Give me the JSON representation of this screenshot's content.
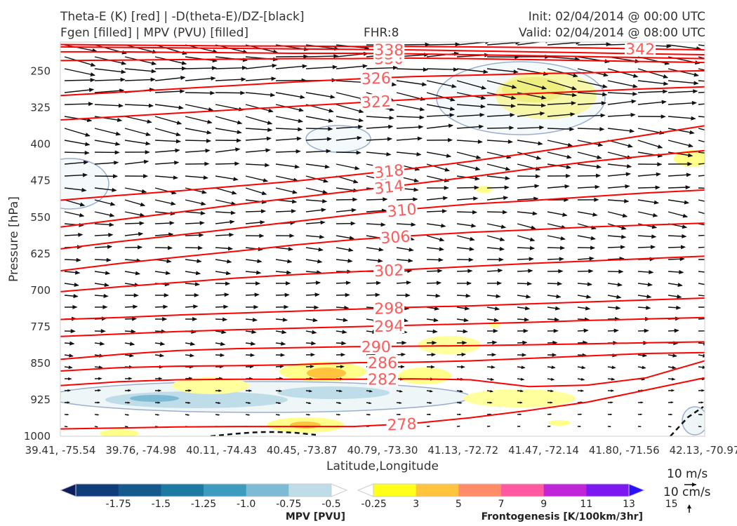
{
  "header": {
    "title_line1": "Theta-E (K) [red] | -D(theta-E)/DZ-[black]",
    "title_line2": "Fgen [filled] | MPV (PVU) [filled]",
    "fhr": "FHR:8",
    "init": "Init: 02/04/2014 @ 00:00 UTC",
    "valid": "Valid: 02/04/2014 @ 08:00 UTC"
  },
  "chart_data": {
    "type": "cross-section",
    "xlabel": "Latitude,Longitude",
    "ylabel": "Pressure [hPa]",
    "x_ticks": [
      "39.41, -75.54",
      "39.76, -74.98",
      "40.11, -74.43",
      "40.45, -73.87",
      "40.79, -73.30",
      "41.13, -72.72",
      "41.47, -72.14",
      "41.80, -71.56",
      "42.13, -70.97"
    ],
    "y_ticks": [
      250,
      325,
      400,
      475,
      550,
      625,
      700,
      775,
      850,
      925,
      1000
    ],
    "ylim": [
      1000,
      190
    ],
    "y_scale": "linear-inverted",
    "theta_e_contours": [
      {
        "label": "278",
        "label_x": 0.53,
        "p": [
          985,
          983,
          981,
          980,
          980,
          980,
          974,
          962,
          947,
          930,
          905,
          880
        ]
      },
      {
        "label": "282",
        "label_x": 0.5,
        "p": [
          896,
          888,
          884,
          883,
          883,
          883,
          882,
          884,
          898,
          895,
          880,
          845
        ]
      },
      {
        "label": "286",
        "label_x": 0.5,
        "p": [
          866,
          859,
          856,
          855,
          853,
          849,
          848,
          845,
          840,
          835,
          830,
          828
        ]
      },
      {
        "label": "290",
        "label_x": 0.49,
        "p": [
          842,
          832,
          824,
          820,
          818,
          816,
          815,
          814,
          812,
          810,
          808,
          806
        ]
      },
      {
        "label": "294",
        "label_x": 0.51,
        "p": [
          795,
          790,
          785,
          781,
          778,
          775,
          772,
          769,
          766,
          762,
          759,
          756
        ]
      },
      {
        "label": "298",
        "label_x": 0.51,
        "p": [
          760,
          756,
          751,
          747,
          743,
          739,
          735,
          732,
          728,
          724,
          720,
          716
        ]
      },
      {
        "label": "302",
        "label_x": 0.51,
        "p": [
          703,
          693,
          684,
          675,
          668,
          662,
          657,
          651,
          645,
          640,
          635,
          630
        ]
      },
      {
        "label": "306",
        "label_x": 0.52,
        "p": [
          660,
          645,
          632,
          620,
          607,
          596,
          588,
          581,
          576,
          570,
          566,
          562
        ]
      },
      {
        "label": "310",
        "label_x": 0.53,
        "p": [
          615,
          600,
          587,
          573,
          559,
          545,
          533,
          523,
          516,
          508,
          500,
          494
        ]
      },
      {
        "label": "314",
        "label_x": 0.51,
        "p": [
          570,
          555,
          540,
          524,
          510,
          496,
          482,
          467,
          451,
          436,
          424,
          413
        ]
      },
      {
        "label": "318",
        "label_x": 0.51,
        "p": [
          515,
          505,
          496,
          486,
          476,
          463,
          450,
          435,
          418,
          400,
          381,
          362
        ]
      },
      {
        "label": "322",
        "label_x": 0.49,
        "p": [
          350,
          343,
          336,
          329,
          322,
          315,
          308,
          301,
          296,
          291,
          286,
          282
        ]
      },
      {
        "label": "326",
        "label_x": 0.49,
        "p": [
          300,
          293,
          286,
          279,
          272,
          266,
          261,
          258,
          255,
          253,
          251,
          249
        ]
      },
      {
        "label": "330",
        "label_x": 0.51,
        "p": [
          228,
          227,
          226,
          225,
          224,
          224,
          223,
          224,
          226,
          228,
          230,
          232
        ]
      },
      {
        "label": "334",
        "label_x": 0.51,
        "p": [
          210,
          210,
          211,
          212,
          213,
          213,
          214,
          216,
          218,
          220,
          222,
          224
        ]
      },
      {
        "label": "338",
        "label_x": 0.51,
        "p": [
          200,
          201,
          202,
          203,
          204,
          205,
          206,
          208,
          210,
          212,
          214,
          216
        ]
      },
      {
        "label": "342",
        "label_x": 0.9,
        "p": [
          195,
          196,
          197,
          198,
          198,
          199,
          199,
          200,
          201,
          202,
          204,
          206
        ]
      }
    ],
    "colorbars": [
      {
        "name": "MPV [PVU]",
        "ticks": [
          "-1.75",
          "-1.5",
          "-1.25",
          "-1.0",
          "-0.75",
          "-0.5",
          "-0.25"
        ],
        "colors": [
          "#0c1f5c",
          "#0f3c7a",
          "#145a8f",
          "#1c7aa3",
          "#3d9bbf",
          "#7dbbd5",
          "#bfdde8",
          "#ffffff"
        ]
      },
      {
        "name": "Frontogenesis [K/100km/3hr]",
        "ticks": [
          "3",
          "5",
          "7",
          "9",
          "11",
          "13",
          "15"
        ],
        "colors": [
          "#ffffff",
          "#ffff1a",
          "#ffc33d",
          "#ff8c66",
          "#ff59a1",
          "#c026d8",
          "#7d19f0",
          "#2a0fff"
        ]
      }
    ],
    "quiver_key": {
      "label_horizontal": "10 m/s",
      "label_vertical": "10 cm/s"
    },
    "colors": {
      "theta_e": "#ff0000",
      "label": "#ff5a5a",
      "arrows": "#111111",
      "mpv_edge": "#9aaed0"
    }
  }
}
